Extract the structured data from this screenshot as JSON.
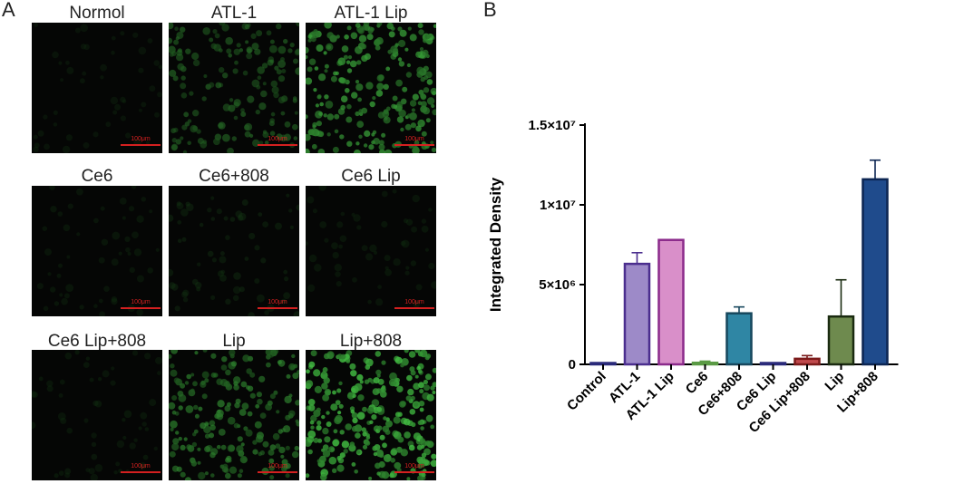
{
  "panel_a": {
    "letter": "A",
    "tiles": [
      {
        "label": "Normol",
        "scale": "100μm",
        "intensity": 0.04
      },
      {
        "label": "ATL-1",
        "scale": "100μm",
        "intensity": 0.45
      },
      {
        "label": "ATL-1 Lip",
        "scale": "100μm",
        "intensity": 0.75
      },
      {
        "label": "Ce6",
        "scale": "100μm",
        "intensity": 0.05
      },
      {
        "label": "Ce6+808",
        "scale": "100μm",
        "intensity": 0.1
      },
      {
        "label": "Ce6 Lip",
        "scale": "100μm",
        "intensity": 0.05
      },
      {
        "label": "Ce6 Lip+808",
        "scale": "100μm",
        "intensity": 0.06
      },
      {
        "label": "Lip",
        "scale": "100μm",
        "intensity": 0.6
      },
      {
        "label": "Lip+808",
        "scale": "100μm",
        "intensity": 0.9
      }
    ]
  },
  "panel_b": {
    "letter": "B"
  },
  "chart_data": {
    "type": "bar",
    "title": "",
    "xlabel": "",
    "ylabel": "Integrated Density",
    "ylim": [
      0,
      15000000
    ],
    "yticks": [
      0,
      5000000,
      10000000,
      15000000
    ],
    "ytick_labels": [
      "0",
      "5×10⁶",
      "1×10⁷",
      "1.5×10⁷"
    ],
    "categories": [
      "Control",
      "ATL-1",
      "ATL-1 Lip",
      "Ce6",
      "Ce6+808",
      "Ce6 Lip",
      "Ce6 Lip+808",
      "Lip",
      "Lip+808"
    ],
    "values": [
      0,
      6300000,
      7800000,
      100000,
      3200000,
      50000,
      350000,
      3000000,
      11600000
    ],
    "errors": [
      0,
      700000,
      0,
      100000,
      400000,
      0,
      200000,
      2300000,
      1200000
    ],
    "colors": [
      "#4a4a9a",
      "#9d8ac8",
      "#d98fc9",
      "#9ecf8a",
      "#2f86a4",
      "#4a4a9a",
      "#c0494c",
      "#6e8a4e",
      "#1f4b8c"
    ],
    "edge_colors": [
      "#2a2a7a",
      "#4b2e8e",
      "#8b2a8b",
      "#5a9a44",
      "#17475d",
      "#2a2a7a",
      "#7a1a1a",
      "#1a2a10",
      "#0c2552"
    ],
    "grid": false
  }
}
